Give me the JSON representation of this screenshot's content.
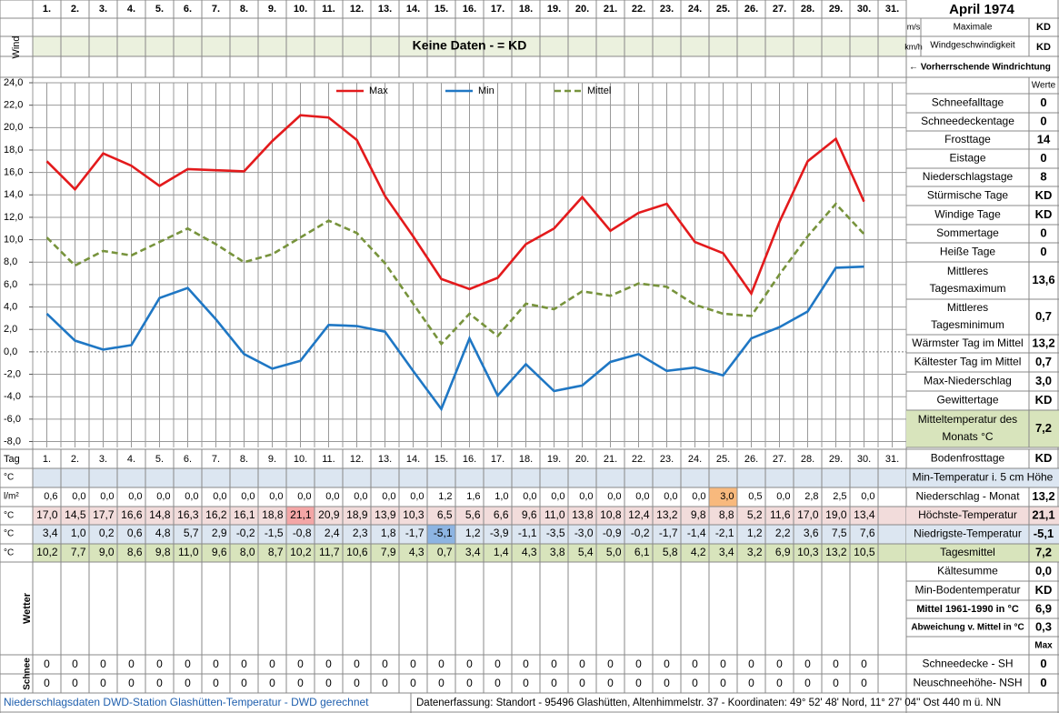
{
  "header": {
    "title": "April 1974",
    "days": [
      "1.",
      "2.",
      "3.",
      "4.",
      "5.",
      "6.",
      "7.",
      "8.",
      "9.",
      "10.",
      "11.",
      "12.",
      "13.",
      "14.",
      "15.",
      "16.",
      "17.",
      "18.",
      "19.",
      "20.",
      "21.",
      "22.",
      "23.",
      "24.",
      "25.",
      "26.",
      "27.",
      "28.",
      "29.",
      "30.",
      "31."
    ],
    "wind_label": "Wind",
    "wind_note": "Keine Daten -  = KD",
    "wind_units": [
      "m/s",
      "km/h"
    ],
    "wind_max_label": [
      "Maximale",
      "Windgeschwindigkeit"
    ],
    "wind_values": [
      "KD",
      "KD"
    ],
    "wind_direction": "← Vorherrschende Windrichtung",
    "werte": "Werte"
  },
  "chart_data": {
    "type": "line",
    "x": [
      1,
      2,
      3,
      4,
      5,
      6,
      7,
      8,
      9,
      10,
      11,
      12,
      13,
      14,
      15,
      16,
      17,
      18,
      19,
      20,
      21,
      22,
      23,
      24,
      25,
      26,
      27,
      28,
      29,
      30
    ],
    "ylim": [
      -8,
      24
    ],
    "yticks": [
      {
        "value": 24,
        "label": "24,0"
      },
      {
        "value": 22,
        "label": "22,0"
      },
      {
        "value": 20,
        "label": "20,0"
      },
      {
        "value": 18,
        "label": "18,0"
      },
      {
        "value": 16,
        "label": "16,0"
      },
      {
        "value": 14,
        "label": "14,0"
      },
      {
        "value": 12,
        "label": "12,0"
      },
      {
        "value": 10,
        "label": "10,0"
      },
      {
        "value": 8,
        "label": "8,0"
      },
      {
        "value": 6,
        "label": "6,0"
      },
      {
        "value": 4,
        "label": "4,0"
      },
      {
        "value": 2,
        "label": "2,0"
      },
      {
        "value": 0,
        "label": "0,0"
      },
      {
        "value": -2,
        "label": "-2,0"
      },
      {
        "value": -4,
        "label": "-4,0"
      },
      {
        "value": -6,
        "label": "-6,0"
      },
      {
        "value": -8,
        "label": "-8,0"
      }
    ],
    "grid": true,
    "series": [
      {
        "name": "Max",
        "color": "#e31a1c",
        "style": "solid",
        "values": [
          17.0,
          14.5,
          17.7,
          16.6,
          14.8,
          16.3,
          16.2,
          16.1,
          18.8,
          21.1,
          20.9,
          18.9,
          13.9,
          10.3,
          6.5,
          5.6,
          6.6,
          9.6,
          11.0,
          13.8,
          10.8,
          12.4,
          13.2,
          9.8,
          8.8,
          5.2,
          11.6,
          17.0,
          19.0,
          13.4
        ],
        "value_labels": [
          "17,0",
          "14,5",
          "17,7",
          "16,6",
          "14,8",
          "16,3",
          "16,2",
          "16,1",
          "18,8",
          "21,1",
          "20,9",
          "18,9",
          "13,9",
          "10,3",
          "6,5",
          "5,6",
          "6,6",
          "9,6",
          "11,0",
          "13,8",
          "10,8",
          "12,4",
          "13,2",
          "9,8",
          "8,8",
          "5,2",
          "11,6",
          "17,0",
          "19,0",
          "13,4"
        ]
      },
      {
        "name": "Min",
        "color": "#1f77c4",
        "style": "solid",
        "values": [
          3.4,
          1.0,
          0.2,
          0.6,
          4.8,
          5.7,
          2.9,
          -0.2,
          -1.5,
          -0.8,
          2.4,
          2.3,
          1.8,
          -1.7,
          -5.1,
          1.2,
          -3.9,
          -1.1,
          -3.5,
          -3.0,
          -0.9,
          -0.2,
          -1.7,
          -1.4,
          -2.1,
          1.2,
          2.2,
          3.6,
          7.5,
          7.6
        ],
        "value_labels": [
          "3,4",
          "1,0",
          "0,2",
          "0,6",
          "4,8",
          "5,7",
          "2,9",
          "-0,2",
          "-1,5",
          "-0,8",
          "2,4",
          "2,3",
          "1,8",
          "-1,7",
          "-5,1",
          "1,2",
          "-3,9",
          "-1,1",
          "-3,5",
          "-3,0",
          "-0,9",
          "-0,2",
          "-1,7",
          "-1,4",
          "-2,1",
          "1,2",
          "2,2",
          "3,6",
          "7,5",
          "7,6"
        ]
      },
      {
        "name": "Mittel",
        "color": "#77933c",
        "style": "dashed",
        "values": [
          10.2,
          7.7,
          9.0,
          8.6,
          9.8,
          11.0,
          9.6,
          8.0,
          8.7,
          10.2,
          11.7,
          10.6,
          7.9,
          4.3,
          0.7,
          3.4,
          1.4,
          4.3,
          3.8,
          5.4,
          5.0,
          6.1,
          5.8,
          4.2,
          3.4,
          3.2,
          6.9,
          10.3,
          13.2,
          10.5
        ],
        "value_labels": [
          "10,2",
          "7,7",
          "9,0",
          "8,6",
          "9,8",
          "11,0",
          "9,6",
          "8,0",
          "8,7",
          "10,2",
          "11,7",
          "10,6",
          "7,9",
          "4,3",
          "0,7",
          "3,4",
          "1,4",
          "4,3",
          "3,8",
          "5,4",
          "5,0",
          "6,1",
          "5,8",
          "4,2",
          "3,4",
          "3,2",
          "6,9",
          "10,3",
          "13,2",
          "10,5"
        ]
      }
    ]
  },
  "table": {
    "tag_label": "Tag",
    "units": [
      "°C",
      "l/m²",
      "°C",
      "°C",
      "°C"
    ],
    "precip": [
      "0,6",
      "0,0",
      "0,0",
      "0,0",
      "0,0",
      "0,0",
      "0,0",
      "0,0",
      "0,0",
      "0,0",
      "0,0",
      "0,0",
      "0,0",
      "0,0",
      "1,2",
      "1,6",
      "1,0",
      "0,0",
      "0,0",
      "0,0",
      "0,0",
      "0,0",
      "0,0",
      "0,0",
      "3,0",
      "0,5",
      "0,0",
      "2,8",
      "2,5",
      "0,0"
    ],
    "wetter_label": "Wetter",
    "schnee_label": "Schnee",
    "schnee_rows": [
      [
        "0",
        "0",
        "0",
        "0",
        "0",
        "0",
        "0",
        "0",
        "0",
        "0",
        "0",
        "0",
        "0",
        "0",
        "0",
        "0",
        "0",
        "0",
        "0",
        "0",
        "0",
        "0",
        "0",
        "0",
        "0",
        "0",
        "0",
        "0",
        "0",
        "0"
      ],
      [
        "0",
        "0",
        "0",
        "0",
        "0",
        "0",
        "0",
        "0",
        "0",
        "0",
        "0",
        "0",
        "0",
        "0",
        "0",
        "0",
        "0",
        "0",
        "0",
        "0",
        "0",
        "0",
        "0",
        "0",
        "0",
        "0",
        "0",
        "0",
        "0",
        "0"
      ]
    ],
    "max_label": "Max"
  },
  "stats": [
    {
      "label": [
        "Schneefalltage"
      ],
      "value": "0"
    },
    {
      "label": [
        "Schneedeckentage"
      ],
      "value": "0"
    },
    {
      "label": [
        "Frosttage"
      ],
      "value": "14"
    },
    {
      "label": [
        "Eistage"
      ],
      "value": "0"
    },
    {
      "label": [
        "Niederschlagstage"
      ],
      "value": "8"
    },
    {
      "label": [
        "Stürmische Tage"
      ],
      "value": "KD"
    },
    {
      "label": [
        "Windige Tage"
      ],
      "value": "KD"
    },
    {
      "label": [
        "Sommertage"
      ],
      "value": "0"
    },
    {
      "label": [
        "Heiße Tage"
      ],
      "value": "0"
    },
    {
      "label": [
        "Mittleres",
        "Tagesmaximum"
      ],
      "value": "13,6"
    },
    {
      "label": [
        "Mittleres",
        "Tagesminimum"
      ],
      "value": "0,7"
    },
    {
      "label": [
        "Wärmster Tag im Mittel"
      ],
      "value": "13,2"
    },
    {
      "label": [
        "Kältester Tag im Mittel"
      ],
      "value": "0,7"
    },
    {
      "label": [
        "Max-Niederschlag"
      ],
      "value": "3,0"
    },
    {
      "label": [
        "Gewittertage"
      ],
      "value": "KD"
    },
    {
      "label": [
        "Mitteltemperatur des",
        "Monats °C"
      ],
      "value": "7,2"
    },
    {
      "label": [
        "Bodenfrosttage"
      ],
      "value": "KD"
    },
    {
      "label": [
        "Min-Temperatur i. 5 cm Höhe"
      ]
    },
    {
      "label": [
        "Niederschlag - Monat"
      ],
      "value": "13,2"
    },
    {
      "label": [
        "Höchste-Temperatur"
      ],
      "value": "21,1"
    },
    {
      "label": [
        "Niedrigste-Temperatur"
      ],
      "value": "-5,1"
    },
    {
      "label": [
        "Tagesmittel"
      ],
      "value": "7,2"
    },
    {
      "label": [
        "Kältesumme"
      ],
      "value": "0,0"
    },
    {
      "label": [
        "Min-Bodentemperatur"
      ],
      "value": "KD"
    },
    {
      "label": [
        "Mittel 1961-1990 in °C"
      ],
      "value": "6,9"
    },
    {
      "label": [
        "Abweichung v. Mittel in °C"
      ],
      "value": "0,3"
    },
    {
      "label": [
        "Schneedecke -  SH"
      ],
      "value": "0"
    },
    {
      "label": [
        "Neuschneehöhe- NSH"
      ],
      "value": "0"
    }
  ],
  "footer": {
    "left": "Niederschlagsdaten DWD-Station Glashütten-Temperatur -  DWD gerechnet",
    "right": "Datenerfassung: Standort - 95496 Glashütten, Altenhimmelstr. 37 - Koordinaten: 49° 52' 48' Nord,  11° 27' 04'' Ost   440 m ü. NN"
  }
}
